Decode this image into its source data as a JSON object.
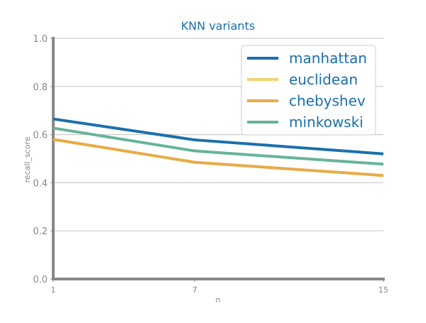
{
  "chart_data": {
    "type": "line",
    "title": "KNN variants",
    "xlabel": "n",
    "ylabel": "recall_score",
    "x": [
      1,
      7,
      15
    ],
    "x_ticks": [
      "1",
      "7",
      "15"
    ],
    "ylim": [
      0.0,
      1.0
    ],
    "y_ticks": [
      "0.0",
      "0.2",
      "0.4",
      "0.6",
      "0.8",
      "1.0"
    ],
    "grid": "horizontal",
    "legend_position": "top-right",
    "series": [
      {
        "name": "manhattan",
        "color": "#1a6fad",
        "values": [
          0.665,
          0.578,
          0.52
        ]
      },
      {
        "name": "euclidean",
        "color": "#f2d46b",
        "values": [
          0.58,
          0.485,
          0.43
        ]
      },
      {
        "name": "chebyshev",
        "color": "#e8ab4a",
        "values": [
          0.58,
          0.485,
          0.43
        ]
      },
      {
        "name": "minkowski",
        "color": "#66b49a",
        "values": [
          0.627,
          0.532,
          0.477
        ]
      }
    ],
    "colors": {
      "title": "#1a6fad",
      "axis": "#888888",
      "grid": "#cccccc",
      "legend_text": "#1a6fad"
    }
  }
}
